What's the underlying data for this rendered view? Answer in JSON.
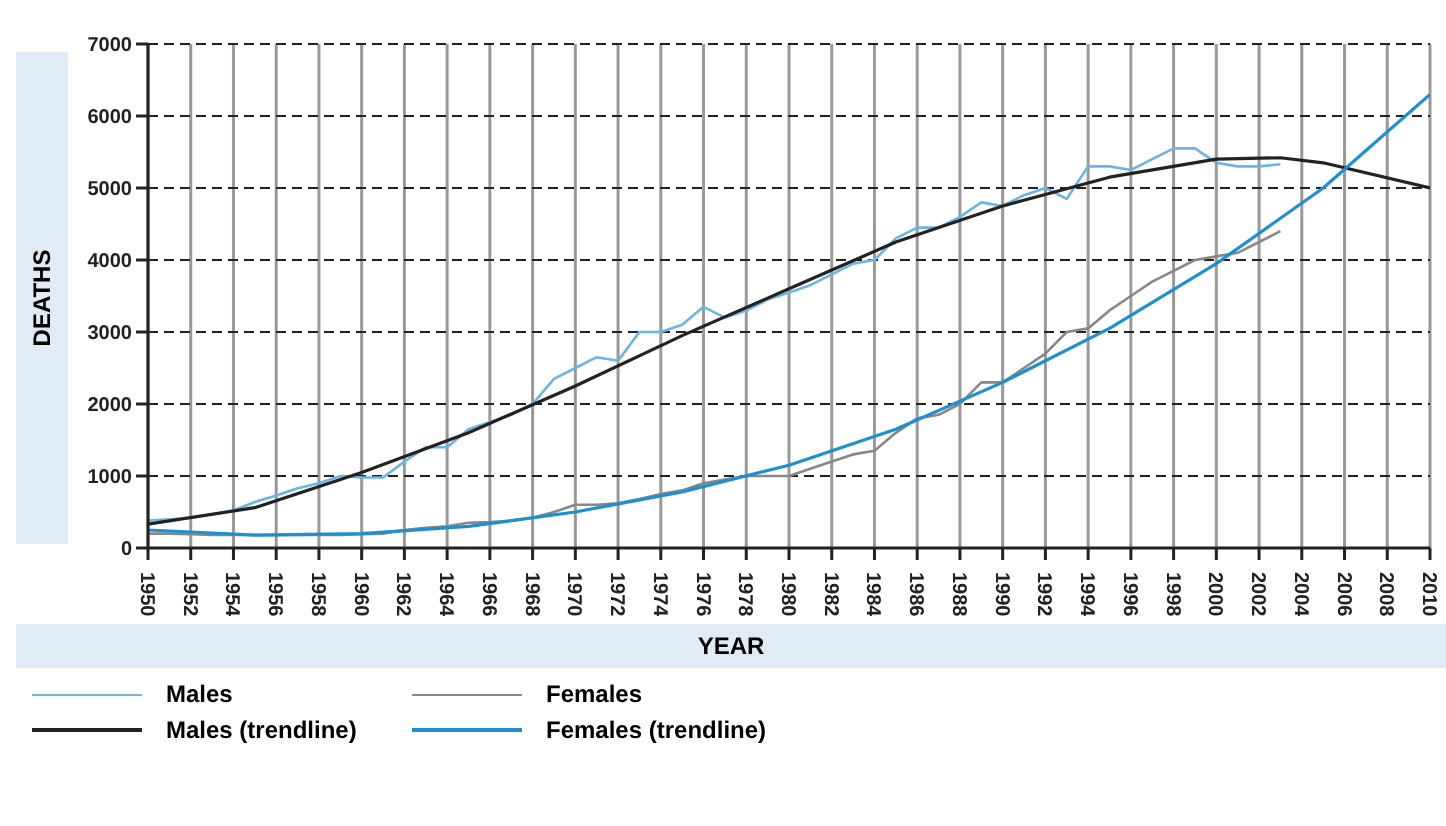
{
  "chart_data": {
    "type": "line",
    "xlabel": "YEAR",
    "ylabel": "DEATHS",
    "xlim": [
      1950,
      2010
    ],
    "xticks": [
      1950,
      1952,
      1954,
      1956,
      1958,
      1960,
      1962,
      1964,
      1966,
      1968,
      1970,
      1972,
      1974,
      1976,
      1978,
      1980,
      1982,
      1984,
      1986,
      1988,
      1990,
      1992,
      1994,
      1996,
      1998,
      2000,
      2002,
      2004,
      2006,
      2008,
      2010
    ],
    "ylim": [
      0,
      7000
    ],
    "yticks": [
      0,
      1000,
      2000,
      3000,
      4000,
      5000,
      6000,
      7000
    ],
    "grid": true,
    "legend": "bottom",
    "marker": "none",
    "series": [
      {
        "name": "Males",
        "color": "#6cb4e4",
        "x": [
          1950,
          1951,
          1952,
          1953,
          1954,
          1955,
          1956,
          1957,
          1958,
          1959,
          1960,
          1961,
          1962,
          1963,
          1964,
          1965,
          1966,
          1967,
          1968,
          1969,
          1970,
          1971,
          1972,
          1973,
          1974,
          1975,
          1976,
          1977,
          1978,
          1979,
          1980,
          1981,
          1982,
          1983,
          1984,
          1985,
          1986,
          1987,
          1988,
          1989,
          1990,
          1991,
          1992,
          1993,
          1994,
          1995,
          1996,
          1997,
          1998,
          1999,
          2000,
          2001,
          2002,
          2003
        ],
        "values": [
          380,
          400,
          420,
          470,
          520,
          640,
          730,
          830,
          900,
          1000,
          980,
          980,
          1200,
          1400,
          1400,
          1650,
          1750,
          1850,
          2000,
          2350,
          2500,
          2650,
          2600,
          3000,
          3000,
          3100,
          3350,
          3200,
          3300,
          3450,
          3550,
          3650,
          3800,
          3950,
          4000,
          4300,
          4450,
          4450,
          4600,
          4800,
          4750,
          4900,
          5000,
          4850,
          5300,
          5300,
          5250,
          5400,
          5550,
          5550,
          5350,
          5300,
          5300,
          5330
        ]
      },
      {
        "name": "Females",
        "color": "#888888",
        "x": [
          1950,
          1951,
          1952,
          1953,
          1954,
          1955,
          1956,
          1957,
          1958,
          1959,
          1960,
          1961,
          1962,
          1963,
          1964,
          1965,
          1966,
          1967,
          1968,
          1969,
          1970,
          1971,
          1972,
          1973,
          1974,
          1975,
          1976,
          1977,
          1978,
          1979,
          1980,
          1981,
          1982,
          1983,
          1984,
          1985,
          1986,
          1987,
          1988,
          1989,
          1990,
          1991,
          1992,
          1993,
          1994,
          1995,
          1996,
          1997,
          1998,
          1999,
          2000,
          2001,
          2002,
          2003
        ],
        "values": [
          200,
          200,
          190,
          180,
          180,
          180,
          180,
          180,
          180,
          180,
          190,
          200,
          250,
          280,
          300,
          350,
          360,
          380,
          420,
          500,
          600,
          600,
          620,
          680,
          750,
          800,
          900,
          950,
          1000,
          1000,
          1000,
          1100,
          1200,
          1300,
          1350,
          1600,
          1800,
          1850,
          2000,
          2300,
          2300,
          2500,
          2700,
          3000,
          3050,
          3300,
          3500,
          3700,
          3850,
          4000,
          4050,
          4100,
          4250,
          4400
        ]
      },
      {
        "name": "Males (trendline)",
        "color": "#222222",
        "x": [
          1950,
          1955,
          1960,
          1965,
          1970,
          1975,
          1980,
          1985,
          1990,
          1995,
          2000,
          2003,
          2005,
          2010
        ],
        "values": [
          330,
          560,
          1050,
          1600,
          2250,
          2950,
          3600,
          4250,
          4750,
          5150,
          5400,
          5420,
          5350,
          5000
        ]
      },
      {
        "name": "Females (trendline)",
        "color": "#1f8fd0",
        "x": [
          1950,
          1955,
          1960,
          1965,
          1970,
          1975,
          1980,
          1985,
          1990,
          1995,
          2000,
          2005,
          2010
        ],
        "values": [
          250,
          180,
          200,
          300,
          500,
          780,
          1150,
          1650,
          2300,
          3050,
          3950,
          5000,
          6300
        ]
      }
    ]
  }
}
